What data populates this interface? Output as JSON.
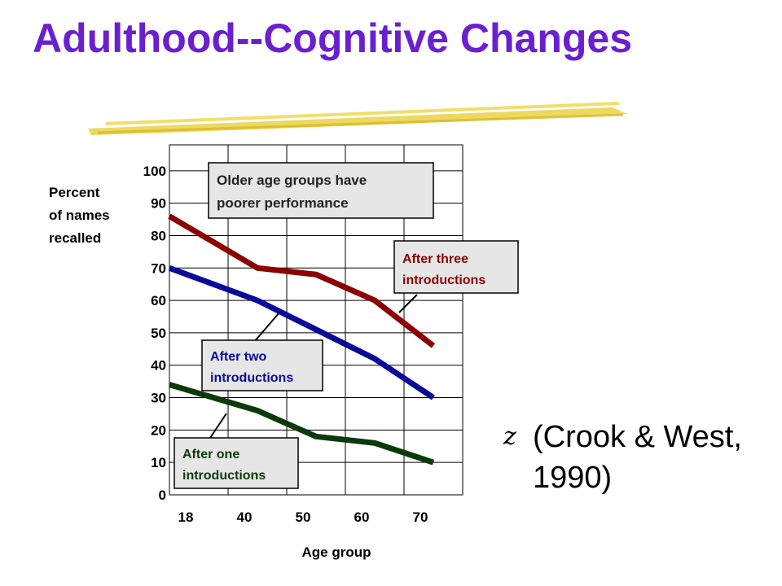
{
  "slide": {
    "title": "Adulthood--Cognitive Changes",
    "title_color": "#6a1fd0",
    "underline_color": "#e8c832",
    "bullet_glyph": "z",
    "citation": "(Crook & West, 1990)"
  },
  "chart_data": {
    "type": "line",
    "title": "",
    "xlabel": "Age group",
    "ylabel": "Percent of names recalled",
    "categories": [
      "18",
      "40",
      "50",
      "60",
      "70"
    ],
    "yticks": [
      0,
      10,
      20,
      30,
      40,
      50,
      60,
      70,
      80,
      90,
      100
    ],
    "ylim": [
      0,
      108
    ],
    "grid": true,
    "series": [
      {
        "name": "After three introductions",
        "color": "#8b0000",
        "values": [
          86,
          70,
          68,
          60,
          46
        ]
      },
      {
        "name": "After two introductions",
        "color": "#0a0a9a",
        "values": [
          70,
          60,
          51,
          42,
          30
        ]
      },
      {
        "name": "After one introductions",
        "color": "#0a3a0a",
        "values": [
          34,
          26,
          18,
          16,
          10
        ]
      }
    ],
    "annotations": [
      {
        "text": "Older age groups have poorer performance",
        "line1": "Older age groups have",
        "line2": "poorer performance",
        "color": "#222222"
      },
      {
        "text": "After three introductions",
        "line1": "After three",
        "line2": "introductions",
        "color": "#8b0000"
      },
      {
        "text": "After two introductions",
        "line1": "After two",
        "line2": "introductions",
        "color": "#0a0a9a"
      },
      {
        "text": "After one introductions",
        "line1": "After one",
        "line2": "introductions",
        "color": "#0a3a0a"
      }
    ]
  }
}
